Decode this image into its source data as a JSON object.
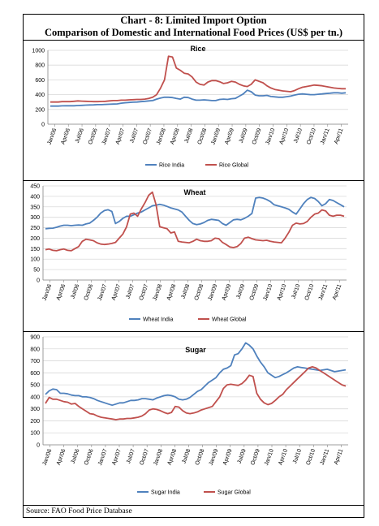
{
  "page": {
    "title_line1": "Chart - 8: Limited Import Option",
    "title_line2": "Comparison of Domestic and International Food Prices (US$ per tn.)",
    "source": "Source: FAO Food Price Database"
  },
  "colors": {
    "india": "#4f81bd",
    "global": "#c0504d",
    "grid": "#d9d9d9",
    "axis": "#868686"
  },
  "chart_data": [
    {
      "type": "line",
      "title": "Rice",
      "ylim": [
        0,
        1000
      ],
      "yticks": [
        0,
        200,
        400,
        600,
        800,
        1000
      ],
      "xtick_labels": [
        "Jan/06",
        "Apr/06",
        "Jul/06",
        "Oct/06",
        "Jan/07",
        "Apr/07",
        "Jul/07",
        "Oct/07",
        "Jan/08",
        "Apr/08",
        "Jul/08",
        "Oct/08",
        "Jan/09",
        "Apr/09",
        "Jul/09",
        "Oct/09",
        "Jan/10",
        "Apr/10",
        "Jul/10",
        "Oct/10",
        "Jan/11",
        "Apr/11"
      ],
      "legend_position": "bottom",
      "series": [
        {
          "name": "Rice India",
          "color": "india",
          "values": [
            245,
            245,
            245,
            248,
            250,
            250,
            250,
            253,
            255,
            258,
            260,
            262,
            265,
            265,
            268,
            270,
            272,
            275,
            285,
            290,
            295,
            298,
            300,
            305,
            310,
            315,
            320,
            340,
            355,
            365,
            365,
            360,
            350,
            340,
            365,
            360,
            340,
            325,
            325,
            330,
            325,
            320,
            320,
            335,
            340,
            335,
            345,
            350,
            380,
            410,
            460,
            440,
            395,
            385,
            385,
            390,
            375,
            370,
            365,
            365,
            372,
            380,
            395,
            405,
            410,
            405,
            400,
            400,
            405,
            410,
            415,
            420,
            425,
            425,
            420,
            425
          ]
        },
        {
          "name": "Rice Global",
          "color": "global",
          "values": [
            300,
            300,
            300,
            305,
            305,
            305,
            310,
            315,
            312,
            310,
            308,
            305,
            305,
            308,
            310,
            315,
            320,
            320,
            325,
            325,
            330,
            332,
            335,
            335,
            340,
            350,
            365,
            400,
            490,
            600,
            920,
            910,
            760,
            730,
            690,
            680,
            640,
            570,
            540,
            530,
            570,
            590,
            590,
            575,
            550,
            560,
            580,
            570,
            540,
            520,
            510,
            540,
            600,
            580,
            560,
            520,
            490,
            470,
            460,
            450,
            445,
            440,
            455,
            480,
            500,
            510,
            520,
            530,
            525,
            520,
            510,
            500,
            490,
            485,
            480,
            480
          ]
        }
      ]
    },
    {
      "type": "line",
      "title": "Wheat",
      "ylim": [
        0,
        450
      ],
      "yticks": [
        0,
        50,
        100,
        150,
        200,
        250,
        300,
        350,
        400,
        450
      ],
      "xtick_labels": [
        "Jan/06",
        "Apr/06",
        "Jul/06",
        "Oct/06",
        "Jan/07",
        "Apr/07",
        "Jul/07",
        "Oct/07",
        "Jan/08",
        "Apr/08",
        "Jul/08",
        "Oct/08",
        "Jan/09",
        "Apr/09",
        "Jul/09",
        "Oct/09",
        "Jan/10",
        "Apr/10",
        "Jul/10",
        "Oct/10",
        "Jan/11",
        "Apr/11"
      ],
      "legend_position": "bottom",
      "series": [
        {
          "name": "Wheat India",
          "color": "india",
          "values": [
            245,
            247,
            248,
            252,
            258,
            262,
            262,
            260,
            262,
            263,
            262,
            268,
            272,
            285,
            300,
            320,
            332,
            336,
            328,
            270,
            280,
            295,
            305,
            305,
            312,
            320,
            325,
            335,
            345,
            355,
            358,
            362,
            358,
            352,
            345,
            340,
            335,
            325,
            305,
            285,
            270,
            265,
            268,
            275,
            285,
            290,
            288,
            285,
            270,
            262,
            275,
            288,
            290,
            288,
            295,
            305,
            318,
            392,
            395,
            392,
            385,
            375,
            360,
            355,
            350,
            345,
            338,
            325,
            315,
            340,
            365,
            385,
            395,
            390,
            375,
            355,
            365,
            385,
            380,
            370,
            360,
            350
          ]
        },
        {
          "name": "Wheat Global",
          "color": "global",
          "values": [
            145,
            148,
            142,
            140,
            145,
            148,
            142,
            140,
            150,
            160,
            185,
            195,
            192,
            188,
            178,
            172,
            170,
            172,
            175,
            180,
            200,
            220,
            255,
            315,
            320,
            305,
            340,
            370,
            405,
            420,
            360,
            255,
            250,
            245,
            225,
            230,
            185,
            182,
            180,
            178,
            185,
            195,
            188,
            185,
            185,
            188,
            200,
            198,
            180,
            170,
            158,
            155,
            160,
            175,
            200,
            205,
            198,
            192,
            190,
            188,
            190,
            185,
            182,
            180,
            178,
            200,
            228,
            262,
            272,
            268,
            270,
            280,
            300,
            315,
            320,
            335,
            330,
            310,
            305,
            310,
            310,
            305
          ]
        }
      ]
    },
    {
      "type": "line",
      "title": "Sugar",
      "ylim": [
        0,
        900
      ],
      "yticks": [
        0,
        100,
        200,
        300,
        400,
        500,
        600,
        700,
        800,
        900
      ],
      "xtick_labels": [
        "Jan/06",
        "Apr/06",
        "Jul/06",
        "Oct/06",
        "Jan/07",
        "Apr/07",
        "Jul/07",
        "Oct/07",
        "Jan/08",
        "Apr/08",
        "Jul/08",
        "Oct/08",
        "Jan/09",
        "Apr/09",
        "Jul/09",
        "Oct/09",
        "Jan/10",
        "Apr/10",
        "Jul/10",
        "Oct/10",
        "Jan/11",
        "Apr/11"
      ],
      "legend_position": "bottom",
      "series": [
        {
          "name": "Sugar India",
          "color": "india",
          "values": [
            420,
            450,
            465,
            460,
            430,
            430,
            425,
            415,
            410,
            410,
            400,
            400,
            395,
            385,
            370,
            360,
            350,
            340,
            330,
            340,
            350,
            350,
            360,
            370,
            370,
            375,
            385,
            385,
            380,
            375,
            390,
            400,
            410,
            415,
            410,
            400,
            380,
            375,
            380,
            395,
            420,
            445,
            460,
            490,
            520,
            540,
            560,
            600,
            630,
            640,
            660,
            750,
            760,
            800,
            850,
            830,
            800,
            740,
            690,
            650,
            600,
            580,
            560,
            570,
            585,
            600,
            620,
            640,
            650,
            645,
            640,
            635,
            630,
            625,
            620,
            625,
            630,
            620,
            610,
            615,
            620,
            625
          ]
        },
        {
          "name": "Sugar Global",
          "color": "global",
          "values": [
            345,
            395,
            380,
            380,
            370,
            360,
            355,
            340,
            345,
            320,
            300,
            280,
            260,
            255,
            240,
            230,
            225,
            220,
            215,
            210,
            215,
            215,
            220,
            220,
            225,
            230,
            240,
            260,
            290,
            300,
            295,
            285,
            270,
            260,
            270,
            320,
            315,
            285,
            265,
            260,
            265,
            275,
            290,
            300,
            310,
            320,
            360,
            400,
            470,
            500,
            505,
            500,
            495,
            510,
            540,
            580,
            570,
            430,
            380,
            350,
            335,
            345,
            370,
            400,
            420,
            460,
            490,
            520,
            550,
            580,
            610,
            640,
            650,
            640,
            620,
            600,
            580,
            560,
            540,
            520,
            500,
            490
          ]
        }
      ]
    }
  ]
}
